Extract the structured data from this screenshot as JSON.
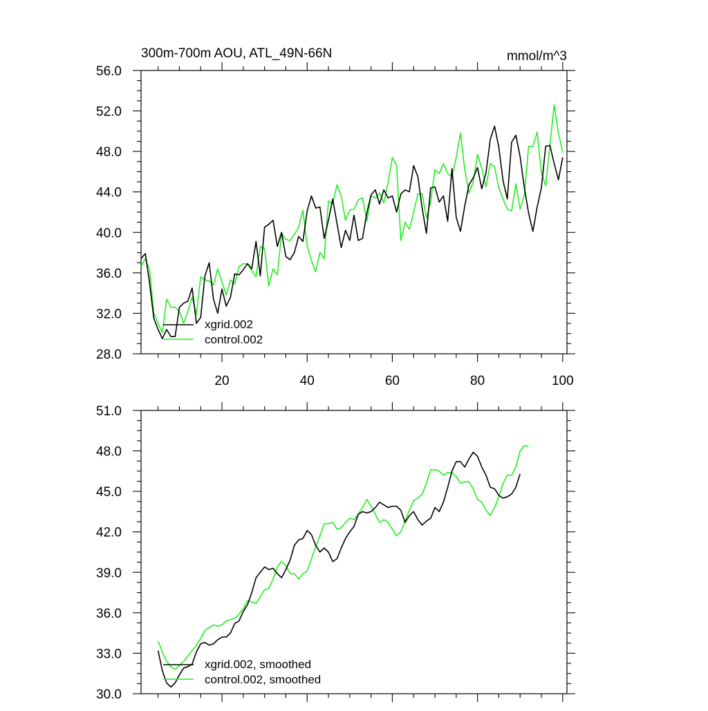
{
  "chart_data": [
    {
      "type": "line",
      "title": "300m-700m AOU, ATL_49N-66N",
      "units": "mmol/m^3",
      "xlim": [
        1,
        101
      ],
      "ylim": [
        28.0,
        56.0
      ],
      "x_ticks": [
        20,
        40,
        60,
        80,
        100
      ],
      "x_tick_labels": [
        "20",
        "40",
        "60",
        "80",
        "100"
      ],
      "y_ticks": [
        28,
        32,
        36,
        40,
        44,
        48,
        52,
        56
      ],
      "y_tick_labels": [
        "28.0",
        "32.0",
        "36.0",
        "40.0",
        "44.0",
        "48.0",
        "52.0",
        "56.0"
      ],
      "legend_position": "bottom-left",
      "series": [
        {
          "name": "xgrid.002",
          "color": "#000000",
          "x_start": 1,
          "values": [
            37.4,
            37.9,
            35.0,
            31.5,
            30.4,
            29.5,
            30.4,
            29.7,
            29.7,
            32.6,
            33.0,
            33.2,
            34.5,
            31.0,
            31.6,
            35.7,
            37.0,
            33.4,
            32.0,
            34.4,
            32.7,
            33.6,
            35.9,
            35.8,
            36.3,
            36.9,
            36.4,
            39.1,
            35.7,
            40.5,
            40.8,
            41.2,
            38.6,
            40.0,
            37.6,
            37.3,
            38.0,
            39.6,
            39.1,
            42.1,
            43.6,
            42.4,
            42.5,
            39.4,
            41.2,
            43.3,
            40.9,
            38.5,
            40.2,
            39.2,
            41.7,
            39.2,
            39.4,
            41.9,
            43.7,
            44.2,
            42.8,
            44.2,
            43.4,
            43.6,
            42.0,
            43.8,
            44.2,
            44.0,
            46.6,
            45.5,
            42.4,
            39.9,
            44.4,
            44.5,
            43.0,
            43.6,
            41.1,
            46.3,
            41.5,
            40.1,
            42.6,
            44.7,
            45.4,
            46.4,
            44.3,
            45.9,
            49.2,
            50.5,
            48.4,
            45.1,
            43.3,
            48.9,
            49.6,
            47.5,
            44.4,
            41.9,
            40.1,
            42.5,
            44.4,
            48.5,
            48.6,
            46.8,
            45.2,
            47.4
          ]
        },
        {
          "name": "control.002",
          "color": "#22ee22",
          "x_start": 1,
          "values": [
            36.6,
            37.4,
            36.3,
            32.0,
            31.0,
            30.1,
            33.4,
            32.6,
            32.6,
            32.2,
            31.0,
            32.2,
            33.6,
            31.9,
            35.6,
            35.3,
            35.2,
            34.8,
            36.4,
            35.1,
            33.8,
            35.3,
            34.9,
            36.6,
            36.9,
            36.9,
            36.2,
            35.6,
            38.6,
            38.4,
            34.7,
            36.4,
            35.8,
            39.9,
            39.3,
            39.2,
            39.8,
            40.5,
            42.2,
            38.7,
            37.2,
            36.1,
            38.0,
            37.4,
            43.1,
            42.8,
            44.7,
            43.6,
            41.2,
            42.2,
            42.3,
            43.2,
            43.4,
            41.1,
            43.6,
            43.4,
            43.9,
            42.9,
            44.9,
            47.4,
            46.6,
            39.2,
            41.0,
            40.3,
            42.0,
            43.8,
            43.8,
            41.4,
            43.0,
            46.2,
            45.8,
            46.8,
            45.8,
            45.5,
            47.4,
            49.8,
            46.2,
            43.9,
            45.0,
            47.7,
            46.3,
            44.5,
            46.8,
            46.5,
            44.4,
            43.3,
            42.3,
            42.1,
            44.8,
            42.3,
            43.7,
            48.5,
            48.5,
            49.9,
            45.9,
            44.6,
            48.6,
            52.6,
            49.8,
            47.9
          ]
        }
      ]
    },
    {
      "type": "line",
      "title": "",
      "xlim": [
        1,
        101
      ],
      "ylim": [
        30.0,
        51.0
      ],
      "x_ticks": [
        20,
        40,
        60,
        80,
        100
      ],
      "y_ticks": [
        30,
        33,
        36,
        39,
        42,
        45,
        48,
        51
      ],
      "y_tick_labels": [
        "30.0",
        "33.0",
        "36.0",
        "39.0",
        "42.0",
        "45.0",
        "48.0",
        "51.0"
      ],
      "legend_position": "bottom-left",
      "series": [
        {
          "name": "xgrid.002, smoothed",
          "color": "#000000",
          "x_start": 5,
          "values": [
            33.2,
            31.7,
            30.8,
            30.5,
            30.8,
            31.4,
            31.9,
            32.0,
            32.2,
            33.1,
            33.7,
            33.8,
            33.6,
            33.7,
            34.0,
            34.2,
            34.2,
            34.5,
            35.2,
            35.4,
            36.1,
            36.6,
            37.5,
            38.6,
            39.0,
            39.4,
            39.2,
            39.3,
            38.9,
            38.6,
            39.2,
            39.9,
            41.0,
            41.4,
            41.5,
            42.1,
            41.8,
            41.0,
            40.5,
            40.8,
            40.5,
            39.8,
            40.0,
            40.8,
            41.5,
            42.0,
            42.4,
            43.3,
            43.5,
            43.4,
            43.5,
            43.8,
            44.2,
            44.0,
            43.8,
            43.9,
            43.9,
            43.6,
            42.7,
            43.2,
            43.5,
            42.9,
            42.5,
            42.8,
            43.0,
            43.8,
            43.5,
            44.2,
            45.3,
            46.5,
            47.2,
            47.2,
            46.8,
            47.4,
            47.9,
            47.6,
            46.8,
            46.2,
            45.3,
            45.2,
            44.7,
            44.5,
            44.6,
            44.8,
            45.3,
            46.3
          ]
        },
        {
          "name": "control.002, smoothed",
          "color": "#22ee22",
          "x_start": 5,
          "values": [
            33.9,
            33.1,
            32.4,
            32.0,
            31.8,
            32.1,
            32.4,
            32.8,
            33.2,
            33.6,
            34.1,
            34.7,
            34.9,
            35.1,
            35.0,
            35.1,
            35.4,
            35.5,
            35.6,
            35.9,
            36.3,
            36.9,
            36.8,
            36.7,
            37.2,
            37.7,
            37.8,
            38.5,
            39.4,
            39.8,
            39.5,
            38.9,
            38.9,
            38.5,
            38.9,
            39.1,
            40.0,
            40.9,
            41.7,
            42.6,
            42.6,
            42.7,
            42.2,
            42.3,
            42.7,
            43.0,
            42.9,
            43.3,
            43.8,
            44.4,
            43.9,
            43.3,
            42.7,
            42.9,
            42.7,
            42.2,
            41.7,
            42.0,
            42.8,
            43.6,
            44.3,
            44.5,
            44.8,
            45.6,
            46.6,
            46.6,
            46.5,
            46.2,
            46.4,
            46.4,
            46.1,
            45.6,
            45.7,
            45.7,
            45.2,
            44.4,
            44.2,
            43.6,
            43.2,
            43.8,
            44.6,
            45.6,
            46.2,
            46.2,
            46.8,
            48.0,
            48.4,
            48.3
          ]
        }
      ]
    }
  ]
}
